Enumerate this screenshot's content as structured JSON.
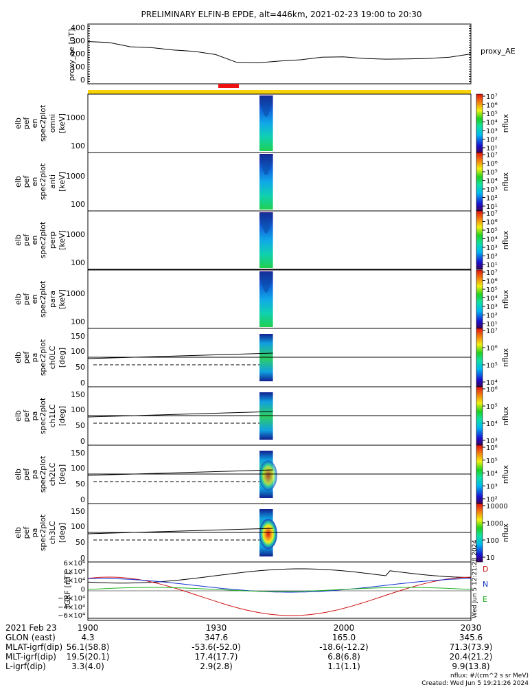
{
  "title": "PRELIMINARY ELFIN-B EPDE, alt=446km, 2021-02-23 19:00 to 20:30",
  "time_ticks": [
    "1900",
    "1930",
    "2000",
    "2030"
  ],
  "colors": {
    "orbit_bar": "#f6d20c",
    "science_bar": "#ee1111",
    "bx": "#d01010",
    "by": "#20b020",
    "bz": "#1030d0",
    "bmag": "#000000"
  },
  "ae_panel": {
    "ylabel": "proxy_ae [nT]",
    "series_label": "proxy_AE",
    "yticks": [
      "400",
      "300",
      "200",
      "100",
      "0"
    ]
  },
  "energy_panels": [
    {
      "label": [
        "elb",
        "pef",
        "en",
        "spec2plot",
        "omni",
        "[keV]"
      ],
      "yticks": [
        "1000",
        "100"
      ]
    },
    {
      "label": [
        "elb",
        "pef",
        "en",
        "spec2plot",
        "anti",
        "[keV]"
      ],
      "yticks": [
        "1000",
        "100"
      ]
    },
    {
      "label": [
        "elb",
        "pef",
        "en",
        "spec2plot",
        "perp",
        "[keV]"
      ],
      "yticks": [
        "1000",
        "100"
      ]
    },
    {
      "label": [
        "elb",
        "pef",
        "en",
        "spec2plot",
        "para",
        "[keV]"
      ],
      "yticks": [
        "1000",
        "100"
      ]
    }
  ],
  "pa_panels": [
    {
      "label": [
        "elb",
        "pef",
        "pa",
        "spec2plot",
        "ch0LC",
        "[deg]"
      ],
      "yticks": [
        "150",
        "100",
        "50",
        "0"
      ]
    },
    {
      "label": [
        "elb",
        "pef",
        "pa",
        "spec2plot",
        "ch1LC",
        "[deg]"
      ],
      "yticks": [
        "150",
        "100",
        "50",
        "0"
      ]
    },
    {
      "label": [
        "elb",
        "pef",
        "pa",
        "spec2plot",
        "ch2LC",
        "[deg]"
      ],
      "yticks": [
        "150",
        "100",
        "50",
        "0"
      ]
    },
    {
      "label": [
        "elb",
        "pef",
        "pa",
        "spec2plot",
        "ch3LC",
        "[deg]"
      ],
      "yticks": [
        "150",
        "100",
        "50",
        "0"
      ]
    }
  ],
  "colorbars": [
    {
      "title": "nflux",
      "ticks": [
        "10⁷",
        "10⁶",
        "10⁵",
        "10⁴",
        "10³",
        "10²",
        "10¹"
      ]
    },
    {
      "title": "nflux",
      "ticks": [
        "10⁷",
        "10⁶",
        "10⁵",
        "10⁴",
        "10³",
        "10²",
        "10¹"
      ]
    },
    {
      "title": "nflux",
      "ticks": [
        "10⁷",
        "10⁶",
        "10⁵",
        "10⁴",
        "10³",
        "10²",
        "10¹"
      ]
    },
    {
      "title": "nflux",
      "ticks": [
        "10⁷",
        "10⁶",
        "10⁵",
        "10⁴",
        "10³",
        "10²",
        "10¹"
      ]
    },
    {
      "title": "nflux",
      "ticks": [
        "10⁷",
        "10⁶",
        "10⁵",
        "10⁴"
      ]
    },
    {
      "title": "nflux",
      "ticks": [
        "10⁶",
        "10⁵",
        "10⁴",
        "10³"
      ]
    },
    {
      "title": "nflux",
      "ticks": [
        "10⁶",
        "10⁵",
        "10⁴",
        "10³",
        "10²"
      ]
    },
    {
      "title": "nflux",
      "ticks": [
        "10000",
        "1000",
        "100",
        "10"
      ]
    }
  ],
  "igrf_panel": {
    "ylabel": "IGRF [nT]",
    "yticks": [
      "6×10⁴",
      "4×10⁴",
      "2×10⁴",
      "0",
      "−2×10⁴",
      "−4×10⁴",
      "−6×10⁴"
    ],
    "legend": [
      "D",
      "N",
      "E"
    ],
    "stamp": "Wed Jun  5 12:21:28 2024"
  },
  "orbit_table": {
    "header": [
      "2021 Feb 23",
      "1900",
      "1930",
      "2000",
      "2030"
    ],
    "rows": [
      {
        "label": "GLON (east)",
        "values": [
          "4.3",
          "347.6",
          "165.0",
          "345.6"
        ]
      },
      {
        "label": "MLAT-igrf(dip)",
        "values": [
          "56.1(58.8)",
          "-53.6(-52.0)",
          "-18.6(-12.2)",
          "71.3(73.9)"
        ]
      },
      {
        "label": "MLT-igrf(dip)",
        "values": [
          "19.5(20.1)",
          "17.4(17.7)",
          "6.8(6.8)",
          "20.4(21.2)"
        ]
      },
      {
        "label": "L-igrf(dip)",
        "values": [
          "3.3(4.0)",
          "2.9(2.8)",
          "1.1(1.1)",
          "9.9(13.8)"
        ]
      }
    ]
  },
  "footer": {
    "units": "nflux: #/(cm^2 s sr MeV)",
    "created": "Created: Wed Jun  5 19:21:26 2024"
  },
  "chart_data": {
    "type": "line",
    "title": "PRELIMINARY ELFIN-B EPDE, alt=446km, 2021-02-23 19:00 to 20:30",
    "x_ticks": [
      "1900",
      "1930",
      "2000",
      "2030"
    ],
    "series": [
      {
        "name": "proxy_AE",
        "ylabel": "proxy_ae [nT]",
        "ylim": [
          0,
          400
        ],
        "x_hhmm": [
          "19:00",
          "19:05",
          "19:10",
          "19:15",
          "19:20",
          "19:25",
          "19:30",
          "19:35",
          "19:40",
          "19:45",
          "19:50",
          "19:55",
          "20:00",
          "20:05",
          "20:10",
          "20:15",
          "20:20",
          "20:25",
          "20:30"
        ],
        "values": [
          295,
          288,
          255,
          248,
          230,
          220,
          195,
          135,
          132,
          145,
          155,
          175,
          178,
          165,
          160,
          162,
          165,
          175,
          200
        ]
      }
    ],
    "science_zone": {
      "start": "19:40",
      "end": "19:43"
    }
  }
}
